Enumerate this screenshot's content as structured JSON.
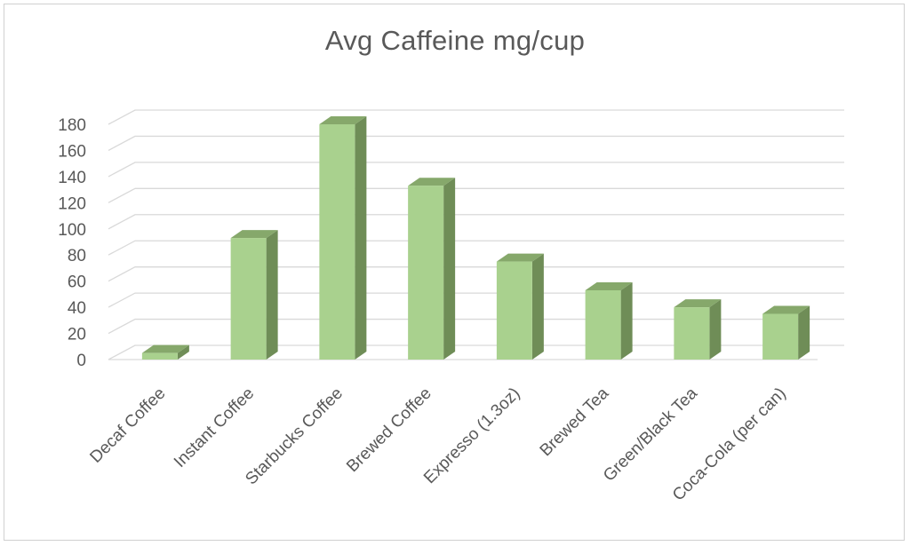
{
  "chart_data": {
    "type": "bar",
    "title": "Avg Caffeine mg/cup",
    "categories": [
      "Decaf Coffee",
      "Instant Coffee",
      "Starbucks Coffee",
      "Brewed Coffee",
      "Expresso (1.3oz)",
      "Brewed Tea",
      "Green/Black Tea",
      "Coca-Cola (per can)"
    ],
    "values": [
      5,
      93,
      180,
      133,
      75,
      53,
      40,
      35
    ],
    "ylim": [
      0,
      180
    ],
    "yticks": [
      "0",
      "20",
      "40",
      "60",
      "80",
      "100",
      "120",
      "140",
      "160",
      "180"
    ],
    "xlabel": "",
    "ylabel": "",
    "grid": true,
    "style": "3d-column",
    "colors": {
      "bar_front": "#a9d18e",
      "bar_side": "#6f8d57",
      "bar_top": "#86a86b",
      "grid": "#d9d9d9",
      "text": "#595959"
    }
  }
}
